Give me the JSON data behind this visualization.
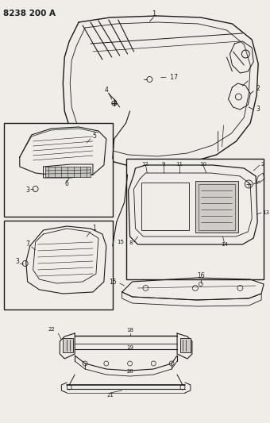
{
  "title": "8238 200 A",
  "bg_color": "#f0ede8",
  "line_color": "#1a1a1a",
  "title_fontsize": 7.5,
  "title_fontweight": "bold"
}
